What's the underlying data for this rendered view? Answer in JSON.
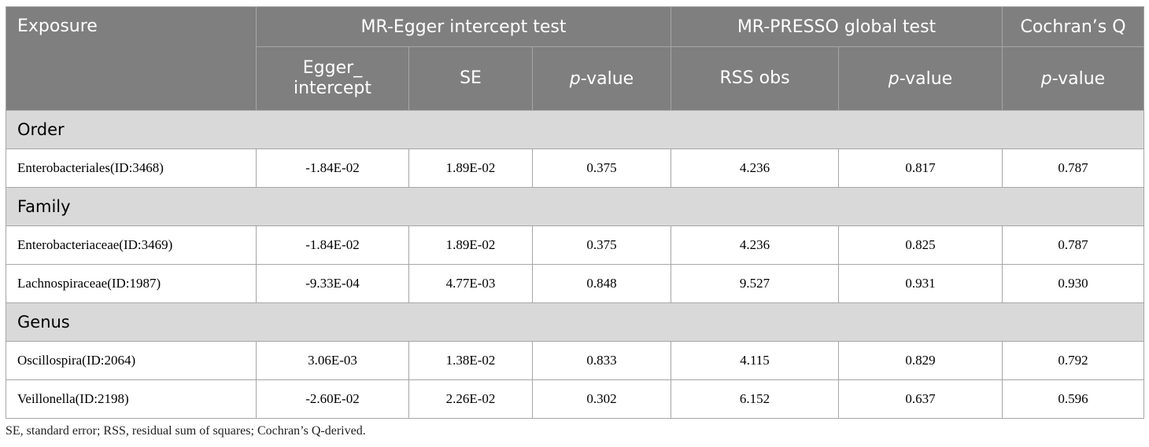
{
  "header": {
    "exposure": "Exposure",
    "groups": [
      "MR-Egger intercept test",
      "MR-PRESSO global test",
      "Cochran’s Q"
    ],
    "columns": [
      [
        "Egger_",
        "intercept"
      ],
      [
        "SE"
      ],
      [
        {
          "italic": "p",
          "text": "-value"
        }
      ],
      [
        "RSS obs"
      ],
      [
        {
          "italic": "p",
          "text": "-value"
        }
      ],
      [
        {
          "italic": "p",
          "text": "-value"
        }
      ]
    ]
  },
  "sections": [
    {
      "name": "Order",
      "rows": [
        [
          "Enterobacteriales(ID:3468)",
          "-1.84E-02",
          "1.89E-02",
          "0.375",
          "4.236",
          "0.817",
          "0.787"
        ]
      ]
    },
    {
      "name": "Family",
      "rows": [
        [
          "Enterobacteriaceae(ID:3469)",
          "-1.84E-02",
          "1.89E-02",
          "0.375",
          "4.236",
          "0.825",
          "0.787"
        ],
        [
          "Lachnospiraceae(ID:1987)",
          "-9.33E-04",
          "4.77E-03",
          "0.848",
          "9.527",
          "0.931",
          "0.930"
        ]
      ]
    },
    {
      "name": "Genus",
      "rows": [
        [
          "Oscillospira(ID:2064)",
          "3.06E-03",
          "1.38E-02",
          "0.833",
          "4.115",
          "0.829",
          "0.792"
        ],
        [
          "Veillonella(ID:2198)",
          "-2.60E-02",
          "2.26E-02",
          "0.302",
          "6.152",
          "0.637",
          "0.596"
        ]
      ]
    }
  ],
  "footnote": "SE, standard error; RSS, residual sum of squares; Cochran’s Q-derived."
}
